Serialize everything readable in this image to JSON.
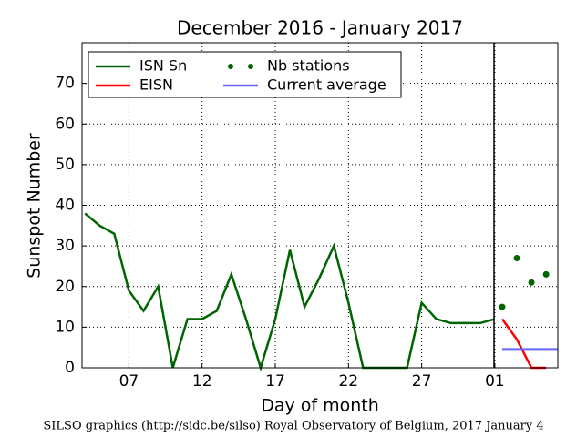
{
  "chart_data": {
    "type": "line",
    "title": "December 2016 - January 2017",
    "x_label": "Day of month",
    "y_label": "Sunspot Number",
    "footer": "SILSO graphics (http://sidc.be/silso) Royal Observatory of Belgium, 2017 January 4",
    "xlim": [
      3.8,
      36.3
    ],
    "ylim": [
      0,
      80
    ],
    "xticks": [
      {
        "value": 7,
        "label": "07"
      },
      12,
      17,
      22,
      27,
      {
        "value": 32,
        "label": "01"
      }
    ],
    "yticks": [
      0,
      10,
      20,
      30,
      40,
      50,
      60,
      70
    ],
    "grid": true,
    "legend": "upper left",
    "series": [
      {
        "name": "ISN Sn",
        "color": "#006400",
        "style": "line",
        "x": [
          4,
          5,
          6,
          7,
          8,
          9,
          10,
          11,
          12,
          13,
          14,
          15,
          16,
          17,
          18,
          19,
          20,
          21,
          22,
          23,
          24,
          25,
          26,
          27,
          28,
          29,
          30,
          31,
          32
        ],
        "values": [
          38,
          35,
          33,
          19,
          14,
          20,
          0,
          12,
          12,
          14,
          23,
          12,
          0,
          12,
          29,
          15,
          22,
          30,
          16,
          0,
          0,
          0,
          0,
          16,
          12,
          11,
          11,
          11,
          12
        ]
      },
      {
        "name": "EISN",
        "color": "#ff0000",
        "style": "line",
        "x": [
          32.5,
          33.5,
          34.5,
          35.5
        ],
        "values": [
          12,
          7,
          0,
          0
        ]
      },
      {
        "name": "Nb stations",
        "color": "#006400",
        "style": "dots",
        "x": [
          32.5,
          33.5,
          34.5,
          35.5
        ],
        "values": [
          15,
          27,
          21,
          23
        ]
      },
      {
        "name": "Current average",
        "color": "#6666ff",
        "style": "line",
        "x": [
          32.5,
          36.3
        ],
        "values": [
          4.5,
          4.5
        ]
      }
    ]
  }
}
